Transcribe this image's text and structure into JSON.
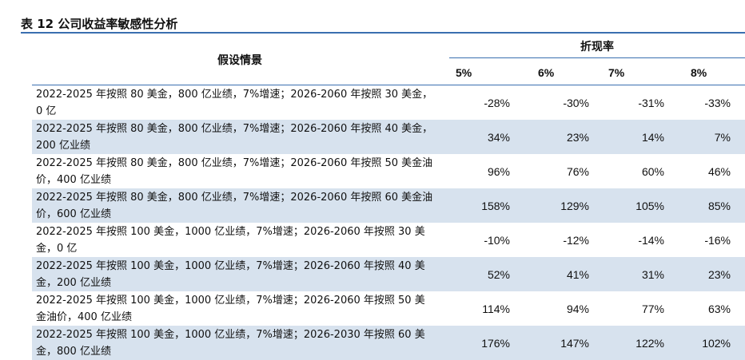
{
  "table_title": "表 12 公司收益率敏感性分析",
  "header": {
    "scenario": "假设情景",
    "group": "折现率",
    "rates": [
      "5%",
      "6%",
      "7%",
      "8%"
    ]
  },
  "rows": [
    {
      "scenario": "2022-2025 年按照 80 美金，800 亿业绩，7%增速；2026-2060 年按照 30 美金，0 亿",
      "values": [
        "-28%",
        "-30%",
        "-31%",
        "-33%"
      ]
    },
    {
      "scenario": "2022-2025 年按照 80 美金，800 亿业绩，7%增速；2026-2060 年按照 40 美金，200 亿业绩",
      "values": [
        "34%",
        "23%",
        "14%",
        "7%"
      ]
    },
    {
      "scenario": "2022-2025 年按照 80 美金，800 亿业绩，7%增速；2026-2060 年按照 50 美金油价，400 亿业绩",
      "values": [
        "96%",
        "76%",
        "60%",
        "46%"
      ]
    },
    {
      "scenario": "2022-2025 年按照 80 美金，800 亿业绩，7%增速；2026-2060 年按照 60 美金油价，600 亿业绩",
      "values": [
        "158%",
        "129%",
        "105%",
        "85%"
      ]
    },
    {
      "scenario": "2022-2025 年按照 100 美金，1000 亿业绩，7%增速；2026-2060 年按照 30 美金，0 亿",
      "values": [
        "-10%",
        "-12%",
        "-14%",
        "-16%"
      ]
    },
    {
      "scenario": "2022-2025 年按照 100 美金，1000 亿业绩，7%增速；2026-2060 年按照 40 美金，200 亿业绩",
      "values": [
        "52%",
        "41%",
        "31%",
        "23%"
      ]
    },
    {
      "scenario": "2022-2025 年按照 100 美金，1000 亿业绩，7%增速；2026-2060 年按照 50 美金油价，400 亿业绩",
      "values": [
        "114%",
        "94%",
        "77%",
        "63%"
      ]
    },
    {
      "scenario": "2022-2025 年按照 100 美金，1000 亿业绩，7%增速；2026-2030 年按照 60 美金，800 亿业绩",
      "values": [
        "176%",
        "147%",
        "122%",
        "102%"
      ]
    }
  ]
}
